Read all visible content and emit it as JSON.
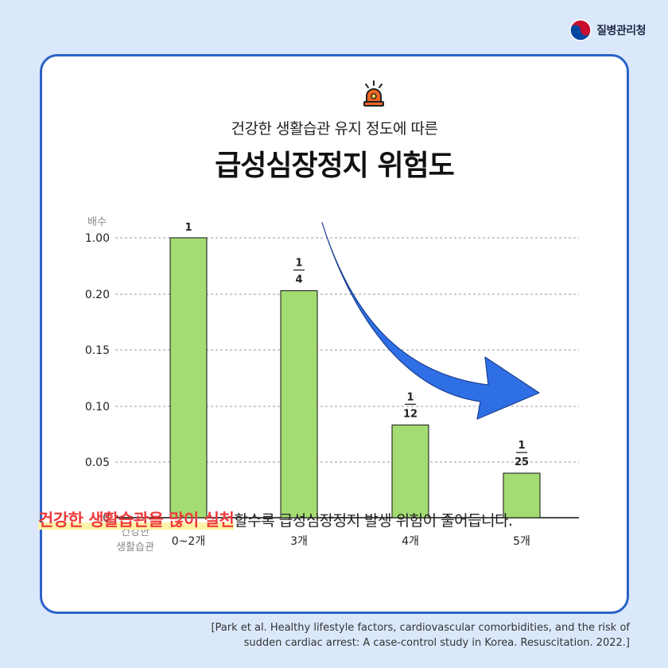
{
  "agency": {
    "name": "질병관리청",
    "logo_icon": "taegeuk-logo-icon"
  },
  "card": {
    "icon": "siren-icon",
    "subtitle": "건강한 생활습관 유지 정도에 따른",
    "title": "급성심장정지 위험도"
  },
  "chart_data": {
    "type": "bar",
    "ylabel": "배수",
    "xlabel": "건강한\n생활습관",
    "yticks": [
      "1.00",
      "0.20",
      "0.15",
      "0.10",
      "0.05",
      "0"
    ],
    "categories": [
      "0~2개",
      "3개",
      "4개",
      "5개"
    ],
    "values": [
      1,
      0.25,
      0.0833,
      0.04
    ],
    "labels": [
      {
        "num": "1",
        "den": ""
      },
      {
        "num": "1",
        "den": "4"
      },
      {
        "num": "1",
        "den": "12"
      },
      {
        "num": "1",
        "den": "25"
      }
    ],
    "grid": true,
    "trend_arrow": "decreasing",
    "colors": {
      "bar": "#a3dc72",
      "bar_stroke": "#111111",
      "arrow": "#2f6fe6",
      "grid": "#9a9a9a"
    }
  },
  "headline": {
    "highlight": "건강한 생활습관을 많이 실천",
    "rest": "할수록 급성심장정지 발생 위험이 줄어듭니다."
  },
  "citation": {
    "line1": "[Park et al. Healthy lifestyle factors, cardiovascular comorbidities, and the risk of",
    "line2": "sudden cardiac arrest: A case-control study in Korea. Resuscitation. 2022.]"
  }
}
